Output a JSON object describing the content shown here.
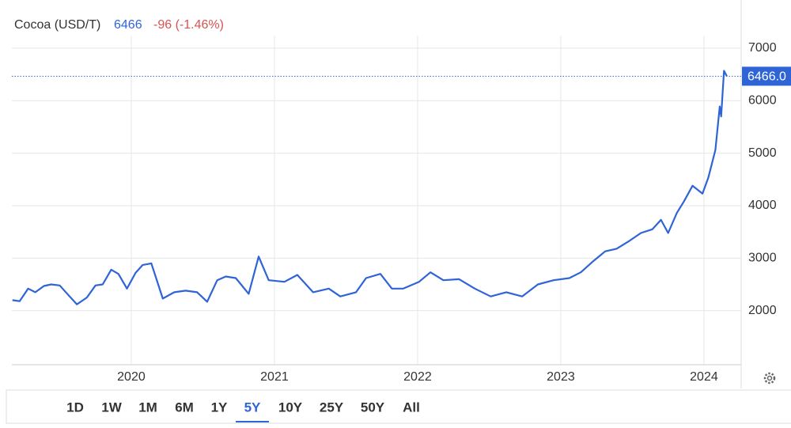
{
  "chart_data": {
    "type": "line",
    "title": "Cocoa (USD/T)",
    "last_price": 6466,
    "change": "-96 (-1.46%)",
    "x": [
      2019.17,
      2019.22,
      2019.28,
      2019.33,
      2019.39,
      2019.44,
      2019.5,
      2019.55,
      2019.62,
      2019.69,
      2019.75,
      2019.8,
      2019.86,
      2019.91,
      2019.97,
      2020.03,
      2020.08,
      2020.14,
      2020.22,
      2020.3,
      2020.38,
      2020.46,
      2020.53,
      2020.6,
      2020.66,
      2020.73,
      2020.82,
      2020.89,
      2020.96,
      2021.07,
      2021.16,
      2021.27,
      2021.38,
      2021.46,
      2021.57,
      2021.64,
      2021.74,
      2021.82,
      2021.9,
      2022.01,
      2022.09,
      2022.18,
      2022.29,
      2022.4,
      2022.51,
      2022.62,
      2022.73,
      2022.84,
      2022.95,
      2023.06,
      2023.14,
      2023.23,
      2023.31,
      2023.39,
      2023.48,
      2023.56,
      2023.64,
      2023.7,
      2023.75,
      2023.81,
      2023.86,
      2023.92,
      2023.99,
      2024.03,
      2024.08,
      2024.11,
      2024.12,
      2024.14,
      2024.16
    ],
    "values": [
      2200,
      2180,
      2420,
      2350,
      2470,
      2500,
      2480,
      2330,
      2120,
      2250,
      2480,
      2500,
      2780,
      2700,
      2420,
      2720,
      2870,
      2900,
      2230,
      2350,
      2380,
      2350,
      2170,
      2580,
      2650,
      2620,
      2320,
      3030,
      2580,
      2550,
      2680,
      2350,
      2420,
      2270,
      2350,
      2620,
      2700,
      2420,
      2420,
      2550,
      2730,
      2580,
      2600,
      2420,
      2270,
      2350,
      2270,
      2500,
      2580,
      2620,
      2730,
      2950,
      3130,
      3180,
      3330,
      3480,
      3550,
      3730,
      3480,
      3860,
      4080,
      4380,
      4230,
      4530,
      5060,
      5890,
      5700,
      6570,
      6466
    ],
    "color": "#2f64d6",
    "xlim": [
      2019.166,
      2024.26
    ],
    "xticks": [
      2020,
      2021,
      2022,
      2023,
      2024
    ],
    "ylim": [
      970,
      7240
    ],
    "yticks": [
      2000,
      3000,
      4000,
      5000,
      6000,
      7000
    ],
    "grid": true,
    "price_line": {
      "value": 6466,
      "label": "6466.0"
    },
    "ranges": [
      "1D",
      "1W",
      "1M",
      "6M",
      "1Y",
      "5Y",
      "10Y",
      "25Y",
      "50Y",
      "All"
    ],
    "selected_range": "5Y"
  }
}
